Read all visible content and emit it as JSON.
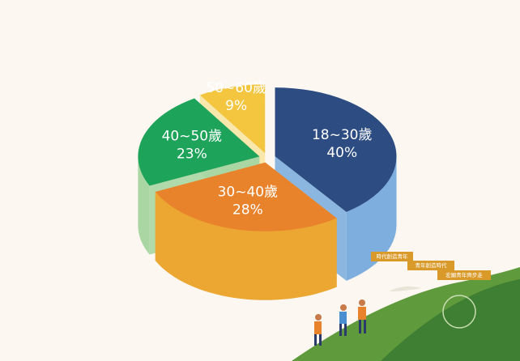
{
  "chart_data": {
    "type": "pie3d",
    "categories": [
      "18~30歲",
      "30~40歲",
      "40~50歲",
      "50~60歲"
    ],
    "values": [
      40,
      28,
      23,
      9
    ],
    "value_labels": [
      "40%",
      "28%",
      "23%",
      "9%"
    ],
    "colors": [
      "#2c4c82",
      "#e8832c",
      "#1ea35b",
      "#f4c53e"
    ],
    "side_colors": [
      "#7eaedd",
      "#eca632",
      "#a9d6a2",
      "#f8e4a4"
    ]
  },
  "signs": [
    "時代創造青年",
    "青年創造時代",
    "宏願青年齊步走"
  ]
}
